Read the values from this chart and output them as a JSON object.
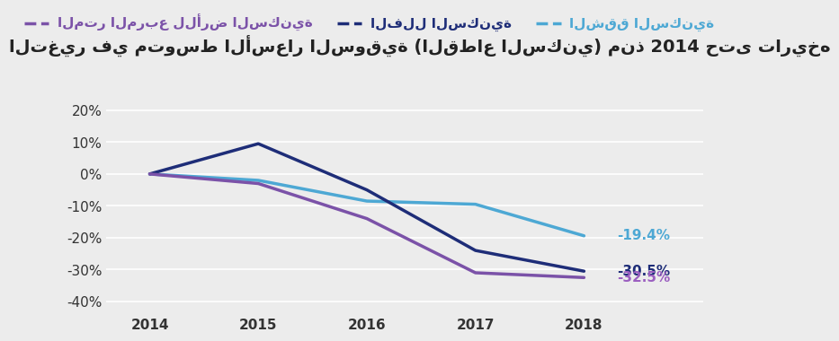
{
  "title": "التغير في متوسط الأسعار السوقية (القطاع السكني) منذ 2014 حتى تاريخه",
  "years": [
    2014,
    2015,
    2016,
    2017,
    2018
  ],
  "series": [
    {
      "label": "الشقق السكنية",
      "values": [
        0.0,
        -2.0,
        -8.5,
        -9.5,
        -19.4
      ],
      "color": "#4da8d4",
      "linewidth": 2.5,
      "end_label": "-19.4%",
      "end_color": "#4da8d4"
    },
    {
      "label": "الفلل السكنية",
      "values": [
        0.0,
        9.5,
        -5.0,
        -24.0,
        -30.5
      ],
      "color": "#1e2d78",
      "linewidth": 2.5,
      "end_label": "-30.5%",
      "end_color": "#1e2d78"
    },
    {
      "label": "المتر المربع للأرض السكنية",
      "values": [
        0.0,
        -3.0,
        -14.0,
        -31.0,
        -32.5
      ],
      "color": "#7b52a8",
      "linewidth": 2.5,
      "end_label": "-32.5%",
      "end_color": "#9b5fc0"
    }
  ],
  "ylim": [
    -44,
    27
  ],
  "yticks": [
    -40,
    -30,
    -20,
    -10,
    0,
    10,
    20
  ],
  "xlim": [
    2013.6,
    2019.1
  ],
  "background_color": "#ececec",
  "plot_bg_color": "#ececec",
  "title_fontsize": 14,
  "legend_fontsize": 11,
  "tick_fontsize": 11,
  "annotation_fontsize": 11
}
